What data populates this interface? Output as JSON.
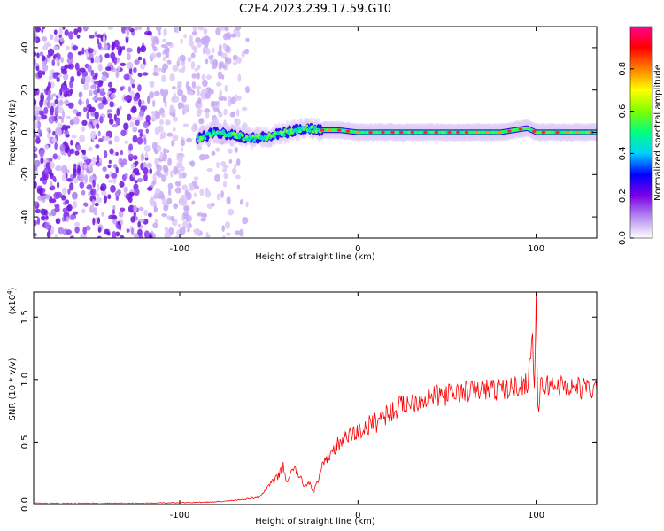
{
  "title": "C2E4.2023.239.17.59.G10",
  "chart_data": [
    {
      "type": "heatmap",
      "xlabel": "Height of straight line (km)",
      "ylabel": "Frequency (Hz)",
      "xlim": [
        -182,
        134
      ],
      "ylim": [
        -50,
        50
      ],
      "xticks": [
        -100,
        0,
        100
      ],
      "yticks": [
        -40,
        -20,
        0,
        20,
        40
      ],
      "colorbar": {
        "label": "Normalized spectral amplitude",
        "range": [
          0,
          1
        ],
        "ticks": [
          "0.0",
          "0.2",
          "0.4",
          "0.6",
          "0.8"
        ],
        "colors": [
          "#ffffff",
          "#b48cf0",
          "#7d00e6",
          "#0000ff",
          "#00d0ff",
          "#00ff7f",
          "#7fff00",
          "#ffff00",
          "#ff8000",
          "#ff0000",
          "#ff0090"
        ]
      },
      "noise_region": {
        "x_start": -182,
        "x_end": -62
      },
      "signal_ridge": {
        "x": [
          -90,
          -80,
          -70,
          -60,
          -50,
          -40,
          -30,
          -20,
          -10,
          0,
          20,
          40,
          60,
          80,
          95,
          100,
          110,
          134
        ],
        "y": [
          -3,
          0,
          -1,
          -3,
          -2,
          0,
          2,
          1,
          1,
          0,
          0,
          0,
          0,
          0,
          2,
          0,
          0,
          0
        ]
      }
    },
    {
      "type": "line",
      "xlabel": "Height of straight line (km)",
      "ylabel": "SNR (10 * v/v)",
      "multiplier": "(x10",
      "multiplier_exp": "4",
      "multiplier_close": ")",
      "xlim": [
        -182,
        134
      ],
      "ylim": [
        0,
        1.7
      ],
      "xticks": [
        -100,
        0,
        100
      ],
      "yticks": [
        "0.0",
        "0.5",
        "1.0",
        "1.5"
      ],
      "series": [
        {
          "color": "#ff0000",
          "x": [
            -182,
            -150,
            -120,
            -100,
            -80,
            -65,
            -60,
            -55,
            -50,
            -45,
            -42,
            -40,
            -38,
            -35,
            -32,
            -30,
            -27,
            -25,
            -22,
            -20,
            -15,
            -10,
            -5,
            0,
            5,
            10,
            15,
            20,
            25,
            30,
            40,
            50,
            60,
            70,
            80,
            85,
            90,
            95,
            97,
            98,
            99,
            100,
            101,
            102,
            105,
            110,
            120,
            134
          ],
          "y": [
            0.01,
            0.01,
            0.01,
            0.015,
            0.02,
            0.04,
            0.05,
            0.06,
            0.15,
            0.22,
            0.3,
            0.18,
            0.25,
            0.28,
            0.2,
            0.15,
            0.18,
            0.1,
            0.2,
            0.3,
            0.42,
            0.5,
            0.55,
            0.58,
            0.62,
            0.66,
            0.72,
            0.75,
            0.8,
            0.82,
            0.86,
            0.88,
            0.9,
            0.92,
            0.92,
            0.93,
            0.95,
            0.97,
            1.2,
            1.35,
            0.9,
            1.65,
            0.7,
            0.92,
            0.95,
            0.96,
            0.94,
            0.92
          ]
        }
      ]
    }
  ]
}
